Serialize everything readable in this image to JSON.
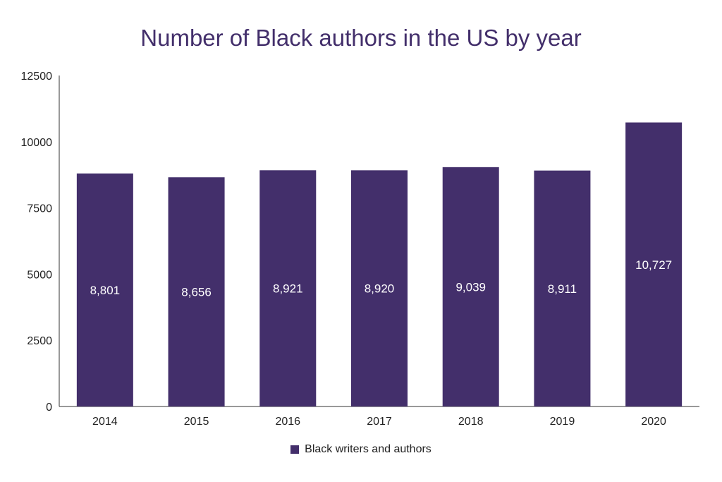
{
  "chart_data": {
    "type": "bar",
    "title": "Number of Black authors in the US by year",
    "xlabel": "",
    "ylabel": "",
    "categories": [
      "2014",
      "2015",
      "2016",
      "2017",
      "2018",
      "2019",
      "2020"
    ],
    "series": [
      {
        "name": "Black writers and authors",
        "values": [
          8801,
          8656,
          8921,
          8920,
          9039,
          8911,
          10727
        ],
        "labels": [
          "8,801",
          "8,656",
          "8,921",
          "8,920",
          "9,039",
          "8,911",
          "10,727"
        ],
        "color": "#432f6b"
      }
    ],
    "ylim": [
      0,
      12500
    ],
    "yticks": [
      "0",
      "2500",
      "5000",
      "7500",
      "10000",
      "12500"
    ],
    "grid": false,
    "legend": "bottom",
    "label_color": "#ffffff",
    "title_color": "#432f6b"
  }
}
